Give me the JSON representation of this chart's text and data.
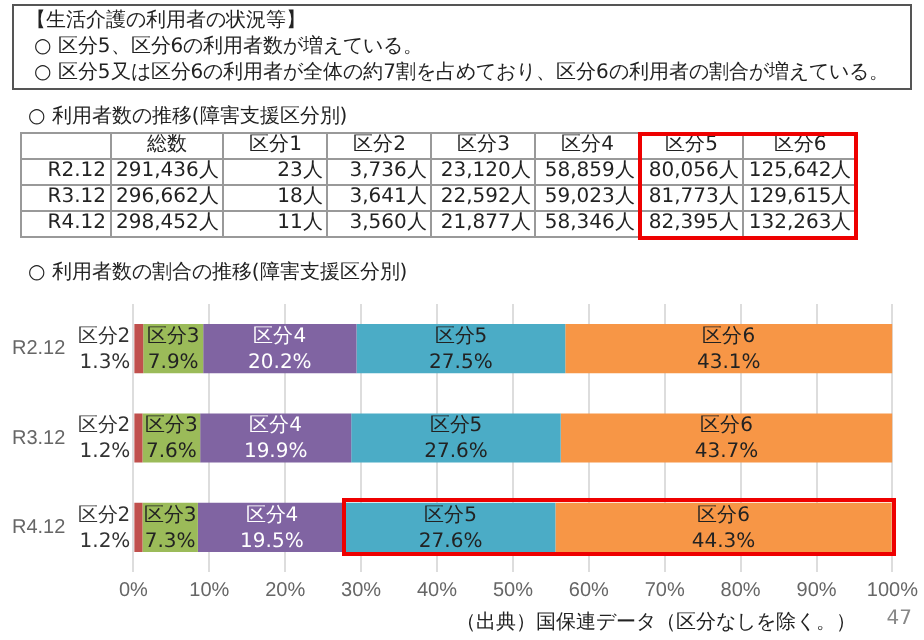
{
  "chart_data": [
    {
      "type": "heatmap",
      "title": "○ 利用者数の推移(障害支援区分別)",
      "annotations": [
        "【生活介護の利用者の状況等】",
        "○ 区分5、区分6の利用者数が増えている。",
        "○ 区分5又は区分6の利用者が全体の約7割を占めており、区分6の利用者の割合が増えている。"
      ],
      "categories": [
        "総数",
        "区分1",
        "区分2",
        "区分3",
        "区分4",
        "区分5",
        "区分6"
      ],
      "y_categories": [
        "R2.12",
        "R3.12",
        "R4.12"
      ],
      "cells": [
        [
          291436,
          23,
          3736,
          23120,
          58859,
          80056,
          125642
        ],
        [
          296662,
          18,
          3641,
          22592,
          59023,
          81773,
          129615
        ],
        [
          298452,
          11,
          3560,
          21877,
          58346,
          82395,
          132263
        ]
      ],
      "cell_labels": [
        [
          "291,436人",
          "23人",
          "3,736人",
          "23,120人",
          "58,859人",
          "80,056人",
          "125,642人"
        ],
        [
          "296,662人",
          "18人",
          "3,641人",
          "22,592人",
          "59,023人",
          "81,773人",
          "129,615人"
        ],
        [
          "298,452人",
          "11人",
          "3,560人",
          "21,877人",
          "58,346人",
          "82,395人",
          "132,263人"
        ]
      ]
    },
    {
      "type": "bar",
      "orientation": "horizontal",
      "stacked": true,
      "title": "○ 利用者数の割合の推移(障害支援区分別)",
      "categories": [
        "R2.12",
        "R3.12",
        "R4.12"
      ],
      "series": [
        {
          "name": "区分2",
          "color": "#c0504d",
          "values": [
            1.3,
            1.2,
            1.2
          ],
          "value_labels": [
            "1.3%",
            "1.2%",
            "1.2%"
          ]
        },
        {
          "name": "区分3",
          "color": "#9bbb59",
          "values": [
            7.9,
            7.6,
            7.3
          ],
          "value_labels": [
            "7.9%",
            "7.6%",
            "7.3%"
          ]
        },
        {
          "name": "区分4",
          "color": "#8064a2",
          "values": [
            20.2,
            19.9,
            19.5
          ],
          "value_labels": [
            "20.2%",
            "19.9%",
            "19.5%"
          ]
        },
        {
          "name": "区分5",
          "color": "#4bacc6",
          "values": [
            27.5,
            27.6,
            27.6
          ],
          "value_labels": [
            "27.5%",
            "27.6%",
            "27.6%"
          ]
        },
        {
          "name": "区分6",
          "color": "#f79646",
          "values": [
            43.1,
            43.7,
            44.3
          ],
          "value_labels": [
            "43.1%",
            "43.7%",
            "44.3%"
          ]
        }
      ],
      "xlim": [
        0,
        100
      ],
      "xticks": [
        {
          "value": 0,
          "label": "0%"
        },
        {
          "value": 10,
          "label": "10%"
        },
        {
          "value": 20,
          "label": "20%"
        },
        {
          "value": 30,
          "label": "30%"
        },
        {
          "value": 40,
          "label": "40%"
        },
        {
          "value": 50,
          "label": "50%"
        },
        {
          "value": 60,
          "label": "60%"
        },
        {
          "value": 70,
          "label": "70%"
        },
        {
          "value": 80,
          "label": "80%"
        },
        {
          "value": 90,
          "label": "90%"
        },
        {
          "value": 100,
          "label": "100%"
        }
      ],
      "grid": "x",
      "annotations": [
        "（出典）国保連データ（区分なしを除く。）",
        "47"
      ]
    }
  ]
}
